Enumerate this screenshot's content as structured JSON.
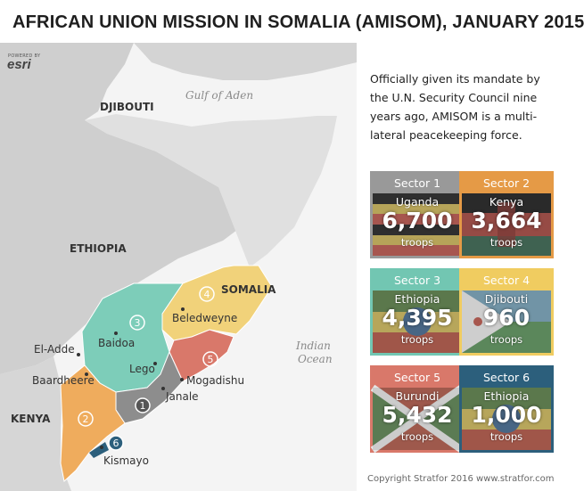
{
  "title": "AFRICAN UNION MISSION IN SOMALIA (AMISOM),  JANUARY 2015",
  "attribution": {
    "small": "POWERED BY",
    "brand": "esri"
  },
  "intro": "Officially given its mandate by the U.N. Security Council nine years ago, AMISOM is a multi-lateral peacekeeping force.",
  "map": {
    "countries": {
      "djibouti": "DJIBOUTI",
      "ethiopia": "ETHIOPIA",
      "somalia": "SOMALIA",
      "kenya": "KENYA"
    },
    "seas": {
      "gulf": "Gulf of Aden",
      "ocean_line1": "Indian",
      "ocean_line2": "Ocean"
    },
    "cities": {
      "eladde": "El-Adde",
      "baidoa": "Baidoa",
      "lego": "Lego",
      "baardheere": "Baardheere",
      "beledweyne": "Beledweyne",
      "mogadishu": "Mogadishu",
      "janale": "Janale",
      "kismayo": "Kismayo"
    },
    "sector_markers": [
      "1",
      "2",
      "3",
      "4",
      "5",
      "6"
    ],
    "colors": {
      "sector1": "#8d8d8d",
      "sector2": "#efac5d",
      "sector3": "#7dcdb9",
      "sector4": "#f1d27a",
      "sector5": "#d9786a",
      "sector6": "#2c5f7c"
    }
  },
  "sectors": [
    {
      "header": "Sector 1",
      "country": "Uganda",
      "troops": "6,700",
      "unit": "troops",
      "color": "#999999",
      "flag": "uganda"
    },
    {
      "header": "Sector 2",
      "country": "Kenya",
      "troops": "3,664",
      "unit": "troops",
      "color": "#e59a46",
      "flag": "kenya"
    },
    {
      "header": "Sector 3",
      "country": "Ethiopia",
      "troops": "4,395",
      "unit": "troops",
      "color": "#72c6b2",
      "flag": "ethiopia"
    },
    {
      "header": "Sector 4",
      "country": "Djibouti",
      "troops": "960",
      "unit": "troops",
      "color": "#f0cc60",
      "flag": "djibouti"
    },
    {
      "header": "Sector 5",
      "country": "Burundi",
      "troops": "5,432",
      "unit": "troops",
      "color": "#d9786a",
      "flag": "burundi"
    },
    {
      "header": "Sector 6",
      "country": "Ethiopia",
      "troops": "1,000",
      "unit": "troops",
      "color": "#2c5f7c",
      "flag": "ethiopia"
    }
  ],
  "copyright": "Copyright Stratfor 2016   www.stratfor.com"
}
